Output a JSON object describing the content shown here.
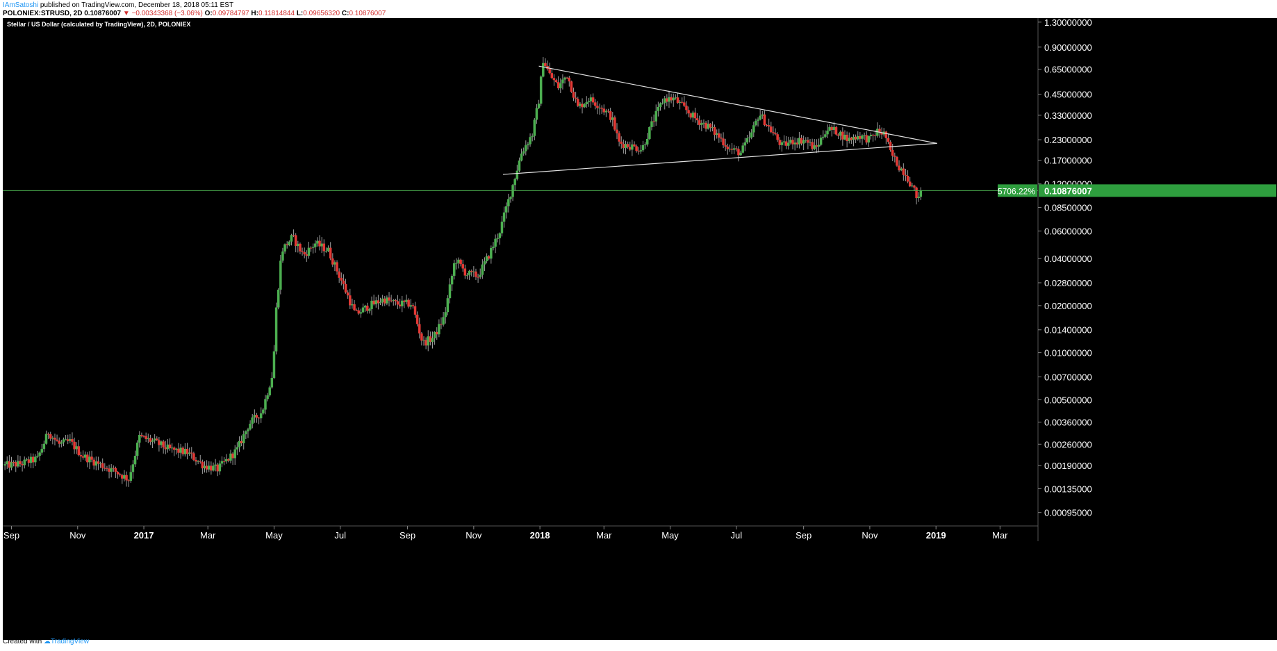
{
  "header": {
    "author": "IAmSatoshi",
    "published": "published on TradingView.com, December 18, 2018 05:11 EST",
    "symbol": "POLONIEX:STRUSD, 2D",
    "last": "0.10876007",
    "change_arrow": "▼",
    "change": "−0.00343368 (−3.06%)",
    "o_label": "O:",
    "o_value": "0.09784797",
    "h_label": "H:",
    "h_value": "0.11814844",
    "l_label": "L:",
    "l_value": "0.09656320",
    "c_label": "C:",
    "c_value": "0.10876007"
  },
  "footer": {
    "created_with": "Created with",
    "brand": "TradingView"
  },
  "colors": {
    "background": "#000000",
    "up": "#4caf50",
    "down": "#e53935",
    "wick": "#9e9e9e",
    "trendline": "#e0e0e0",
    "price_line": "#4caf50",
    "badge": "#2e9e3e",
    "axis_text": "#ffffff"
  },
  "chart_data": {
    "type": "candlestick",
    "title": "Stellar / US Dollar (calculated by TradingView), 2D, POLONIEX",
    "y_scale": "log",
    "ylim": [
      0.00078,
      1.38
    ],
    "y_ticks": [
      {
        "v": 1.3,
        "label": "1.30000000"
      },
      {
        "v": 0.9,
        "label": "0.90000000"
      },
      {
        "v": 0.65,
        "label": "0.65000000"
      },
      {
        "v": 0.45,
        "label": "0.45000000"
      },
      {
        "v": 0.33,
        "label": "0.33000000"
      },
      {
        "v": 0.23,
        "label": "0.23000000"
      },
      {
        "v": 0.17,
        "label": "0.17000000"
      },
      {
        "v": 0.12,
        "label": "0.12000000"
      },
      {
        "v": 0.085,
        "label": "0.08500000"
      },
      {
        "v": 0.06,
        "label": "0.06000000"
      },
      {
        "v": 0.04,
        "label": "0.04000000"
      },
      {
        "v": 0.028,
        "label": "0.02800000"
      },
      {
        "v": 0.02,
        "label": "0.02000000"
      },
      {
        "v": 0.014,
        "label": "0.01400000"
      },
      {
        "v": 0.01,
        "label": "0.01000000"
      },
      {
        "v": 0.007,
        "label": "0.00700000"
      },
      {
        "v": 0.005,
        "label": "0.00500000"
      },
      {
        "v": 0.0036,
        "label": "0.00360000"
      },
      {
        "v": 0.0026,
        "label": "0.00260000"
      },
      {
        "v": 0.0019,
        "label": "0.00190000"
      },
      {
        "v": 0.00135,
        "label": "0.00135000"
      },
      {
        "v": 0.00095,
        "label": "0.00095000"
      }
    ],
    "x_ticks": [
      {
        "date": "2016-09-01",
        "label": "Sep",
        "bold": false
      },
      {
        "date": "2016-11-01",
        "label": "Nov",
        "bold": false
      },
      {
        "date": "2017-01-01",
        "label": "2017",
        "bold": true
      },
      {
        "date": "2017-03-01",
        "label": "Mar",
        "bold": false
      },
      {
        "date": "2017-05-01",
        "label": "May",
        "bold": false
      },
      {
        "date": "2017-07-01",
        "label": "Jul",
        "bold": false
      },
      {
        "date": "2017-09-01",
        "label": "Sep",
        "bold": false
      },
      {
        "date": "2017-11-01",
        "label": "Nov",
        "bold": false
      },
      {
        "date": "2018-01-01",
        "label": "2018",
        "bold": true
      },
      {
        "date": "2018-03-01",
        "label": "Mar",
        "bold": false
      },
      {
        "date": "2018-05-01",
        "label": "May",
        "bold": false
      },
      {
        "date": "2018-07-01",
        "label": "Jul",
        "bold": false
      },
      {
        "date": "2018-09-01",
        "label": "Sep",
        "bold": false
      },
      {
        "date": "2018-11-01",
        "label": "Nov",
        "bold": false
      },
      {
        "date": "2019-01-01",
        "label": "2019",
        "bold": true
      },
      {
        "date": "2019-03-01",
        "label": "Mar",
        "bold": false
      }
    ],
    "x_range": [
      "2016-08-24",
      "2019-04-05"
    ],
    "price_series": [
      [
        "2016-08-26",
        0.0019
      ],
      [
        "2016-09-10",
        0.00195
      ],
      [
        "2016-09-25",
        0.0021
      ],
      [
        "2016-10-05",
        0.0031
      ],
      [
        "2016-10-15",
        0.0026
      ],
      [
        "2016-10-25",
        0.0027
      ],
      [
        "2016-11-05",
        0.0022
      ],
      [
        "2016-11-20",
        0.00195
      ],
      [
        "2016-12-05",
        0.00175
      ],
      [
        "2016-12-18",
        0.00155
      ],
      [
        "2016-12-28",
        0.0029
      ],
      [
        "2017-01-10",
        0.0027
      ],
      [
        "2017-01-25",
        0.0024
      ],
      [
        "2017-02-10",
        0.0023
      ],
      [
        "2017-02-25",
        0.0019
      ],
      [
        "2017-03-10",
        0.0018
      ],
      [
        "2017-03-20",
        0.0021
      ],
      [
        "2017-03-28",
        0.0024
      ],
      [
        "2017-04-08",
        0.0035
      ],
      [
        "2017-04-20",
        0.0042
      ],
      [
        "2017-04-30",
        0.0075
      ],
      [
        "2017-05-03",
        0.019
      ],
      [
        "2017-05-08",
        0.045
      ],
      [
        "2017-05-18",
        0.055
      ],
      [
        "2017-05-28",
        0.042
      ],
      [
        "2017-06-08",
        0.05
      ],
      [
        "2017-06-20",
        0.045
      ],
      [
        "2017-07-02",
        0.029
      ],
      [
        "2017-07-15",
        0.0175
      ],
      [
        "2017-07-28",
        0.02
      ],
      [
        "2017-08-10",
        0.022
      ],
      [
        "2017-08-22",
        0.0205
      ],
      [
        "2017-09-05",
        0.0205
      ],
      [
        "2017-09-15",
        0.0115
      ],
      [
        "2017-09-25",
        0.0125
      ],
      [
        "2017-10-05",
        0.017
      ],
      [
        "2017-10-15",
        0.04
      ],
      [
        "2017-10-25",
        0.032
      ],
      [
        "2017-11-05",
        0.031
      ],
      [
        "2017-11-15",
        0.042
      ],
      [
        "2017-11-25",
        0.06
      ],
      [
        "2017-12-05",
        0.105
      ],
      [
        "2017-12-15",
        0.19
      ],
      [
        "2017-12-25",
        0.25
      ],
      [
        "2017-12-31",
        0.41
      ],
      [
        "2018-01-04",
        0.75
      ],
      [
        "2018-01-10",
        0.6
      ],
      [
        "2018-01-18",
        0.5
      ],
      [
        "2018-01-26",
        0.6
      ],
      [
        "2018-02-05",
        0.37
      ],
      [
        "2018-02-15",
        0.42
      ],
      [
        "2018-02-25",
        0.38
      ],
      [
        "2018-03-08",
        0.32
      ],
      [
        "2018-03-15",
        0.22
      ],
      [
        "2018-03-25",
        0.21
      ],
      [
        "2018-04-05",
        0.2
      ],
      [
        "2018-04-15",
        0.3
      ],
      [
        "2018-04-25",
        0.42
      ],
      [
        "2018-05-05",
        0.42
      ],
      [
        "2018-05-15",
        0.36
      ],
      [
        "2018-05-25",
        0.31
      ],
      [
        "2018-06-05",
        0.28
      ],
      [
        "2018-06-15",
        0.24
      ],
      [
        "2018-06-25",
        0.2
      ],
      [
        "2018-07-05",
        0.19
      ],
      [
        "2018-07-15",
        0.25
      ],
      [
        "2018-07-22",
        0.34
      ],
      [
        "2018-08-01",
        0.27
      ],
      [
        "2018-08-12",
        0.21
      ],
      [
        "2018-08-22",
        0.225
      ],
      [
        "2018-09-02",
        0.23
      ],
      [
        "2018-09-12",
        0.2
      ],
      [
        "2018-09-22",
        0.27
      ],
      [
        "2018-10-02",
        0.26
      ],
      [
        "2018-10-12",
        0.23
      ],
      [
        "2018-10-22",
        0.245
      ],
      [
        "2018-11-01",
        0.23
      ],
      [
        "2018-11-08",
        0.26
      ],
      [
        "2018-11-15",
        0.25
      ],
      [
        "2018-11-20",
        0.19
      ],
      [
        "2018-11-28",
        0.155
      ],
      [
        "2018-12-04",
        0.14
      ],
      [
        "2018-12-10",
        0.115
      ],
      [
        "2018-12-16",
        0.095
      ],
      [
        "2018-12-18",
        0.1088
      ]
    ],
    "trendlines": [
      {
        "name": "upper",
        "from": [
          "2017-12-31",
          0.68
        ],
        "to": [
          "2019-01-02",
          0.218
        ]
      },
      {
        "name": "lower",
        "from": [
          "2017-11-28",
          0.138
        ],
        "to": [
          "2019-01-02",
          0.218
        ]
      }
    ],
    "current_price": {
      "value": 0.10876007,
      "label": "0.10876007",
      "percent": "5706.22%"
    }
  }
}
